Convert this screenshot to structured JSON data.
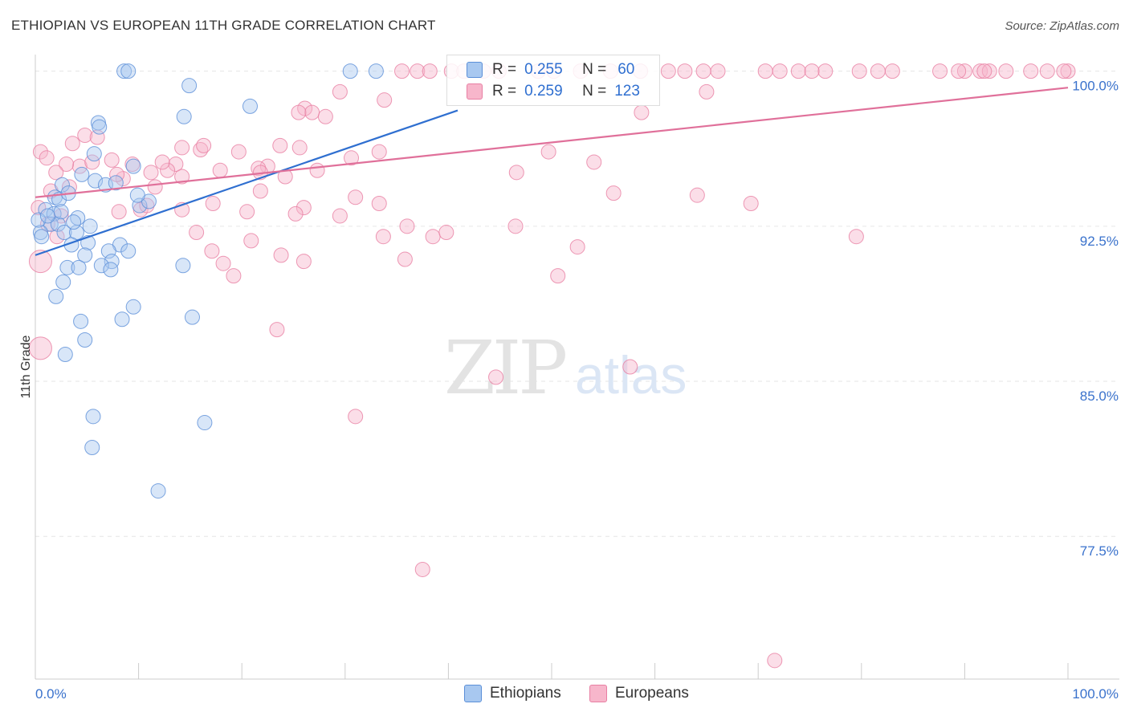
{
  "title": "ETHIOPIAN VS EUROPEAN 11TH GRADE CORRELATION CHART",
  "source": "Source: ZipAtlas.com",
  "watermark": {
    "zip": "ZIP",
    "atlas": "atlas"
  },
  "legend": {
    "r_label": "R =",
    "n_label": "N =",
    "ethiopians": {
      "r": "0.255",
      "n": "60"
    },
    "europeans": {
      "r": "0.259",
      "n": "123"
    }
  },
  "bottom_legend": {
    "ethiopians": "Ethiopians",
    "europeans": "Europeans"
  },
  "colors": {
    "ethiopians_fill": "#a8c8f0",
    "ethiopians_stroke": "#5b8fd8",
    "ethiopians_line": "#2f6fd0",
    "europeans_fill": "#f7b6cb",
    "europeans_stroke": "#e87fa3",
    "europeans_line": "#e0709a",
    "axis_text": "#3a72cc"
  },
  "chart_data": {
    "type": "scatter",
    "title": "ETHIOPIAN VS EUROPEAN 11TH GRADE CORRELATION CHART",
    "xlabel": "",
    "ylabel": "11th Grade",
    "xlim": [
      0,
      100
    ],
    "ylim": [
      70.6,
      100.8
    ],
    "x_tick_labels": [
      "0.0%",
      "100.0%"
    ],
    "y_ticks": [
      {
        "value": 100.0,
        "label": "100.0%"
      },
      {
        "value": 92.5,
        "label": "92.5%"
      },
      {
        "value": 85.0,
        "label": "85.0%"
      },
      {
        "value": 77.5,
        "label": "77.5%"
      }
    ],
    "series": [
      {
        "name": "Ethiopians",
        "r": 0.255,
        "n": 60,
        "trend": {
          "x": [
            0,
            40.9
          ],
          "y": [
            91.1,
            98.1
          ]
        },
        "points": [
          [
            8.6,
            100
          ],
          [
            9.0,
            100
          ],
          [
            30.5,
            100
          ],
          [
            33.0,
            100
          ],
          [
            14.9,
            99.3
          ],
          [
            20.8,
            98.3
          ],
          [
            14.4,
            97.8
          ],
          [
            6.1,
            97.5
          ],
          [
            6.2,
            97.3
          ],
          [
            5.7,
            96.0
          ],
          [
            9.5,
            95.4
          ],
          [
            4.5,
            95.0
          ],
          [
            5.8,
            94.7
          ],
          [
            6.8,
            94.5
          ],
          [
            7.8,
            94.6
          ],
          [
            2.6,
            94.5
          ],
          [
            1.9,
            93.9
          ],
          [
            2.3,
            93.8
          ],
          [
            3.2,
            94.1
          ],
          [
            1.0,
            93.3
          ],
          [
            1.8,
            93.1
          ],
          [
            1.5,
            92.6
          ],
          [
            2.2,
            92.6
          ],
          [
            4.1,
            92.9
          ],
          [
            5.3,
            92.5
          ],
          [
            0.5,
            92.2
          ],
          [
            0.6,
            92.0
          ],
          [
            2.8,
            92.2
          ],
          [
            4.0,
            92.2
          ],
          [
            8.2,
            91.6
          ],
          [
            3.5,
            91.6
          ],
          [
            5.1,
            91.7
          ],
          [
            9.0,
            91.3
          ],
          [
            7.1,
            91.3
          ],
          [
            4.8,
            91.1
          ],
          [
            7.4,
            90.8
          ],
          [
            14.3,
            90.6
          ],
          [
            3.1,
            90.5
          ],
          [
            4.2,
            90.5
          ],
          [
            6.4,
            90.6
          ],
          [
            7.3,
            90.4
          ],
          [
            2.7,
            89.8
          ],
          [
            2.0,
            89.1
          ],
          [
            9.5,
            88.6
          ],
          [
            8.4,
            88.0
          ],
          [
            15.2,
            88.1
          ],
          [
            4.4,
            87.9
          ],
          [
            4.8,
            87.0
          ],
          [
            2.9,
            86.3
          ],
          [
            5.6,
            83.3
          ],
          [
            16.4,
            83.0
          ],
          [
            5.5,
            81.8
          ],
          [
            11.9,
            79.7
          ],
          [
            0.3,
            92.8
          ],
          [
            1.2,
            93.0
          ],
          [
            2.5,
            93.2
          ],
          [
            3.7,
            92.7
          ],
          [
            10.1,
            93.5
          ],
          [
            11.0,
            93.7
          ],
          [
            9.9,
            94.0
          ]
        ]
      },
      {
        "name": "Europeans",
        "r": 0.259,
        "n": 123,
        "trend": {
          "x": [
            0,
            100
          ],
          "y": [
            93.9,
            99.2
          ]
        },
        "points": [
          [
            35.5,
            100
          ],
          [
            37.0,
            100
          ],
          [
            43.4,
            100
          ],
          [
            44.9,
            100
          ],
          [
            48.7,
            100
          ],
          [
            55.7,
            100
          ],
          [
            61.3,
            100
          ],
          [
            64.7,
            100
          ],
          [
            73.9,
            100
          ],
          [
            76.5,
            100
          ],
          [
            83.0,
            100
          ],
          [
            87.6,
            100
          ],
          [
            90.0,
            100
          ],
          [
            91.5,
            100
          ],
          [
            92.4,
            100
          ],
          [
            96.4,
            100
          ],
          [
            98.0,
            100
          ],
          [
            100,
            100
          ],
          [
            38.2,
            100
          ],
          [
            40.3,
            100
          ],
          [
            41.5,
            100
          ],
          [
            50.2,
            100
          ],
          [
            52.8,
            100
          ],
          [
            58.6,
            100
          ],
          [
            62.9,
            100
          ],
          [
            66.1,
            100
          ],
          [
            70.7,
            100
          ],
          [
            72.1,
            100
          ],
          [
            75.2,
            100
          ],
          [
            79.8,
            100
          ],
          [
            81.6,
            100
          ],
          [
            89.4,
            100
          ],
          [
            91.9,
            100
          ],
          [
            94.0,
            100
          ],
          [
            99.6,
            100
          ],
          [
            29.5,
            99.0
          ],
          [
            65.0,
            99.0
          ],
          [
            33.8,
            98.6
          ],
          [
            26.1,
            98.2
          ],
          [
            26.8,
            98.0
          ],
          [
            25.5,
            98.0
          ],
          [
            28.1,
            97.8
          ],
          [
            58.7,
            98.0
          ],
          [
            4.8,
            96.9
          ],
          [
            16.0,
            96.2
          ],
          [
            3.6,
            96.5
          ],
          [
            19.7,
            96.1
          ],
          [
            14.2,
            96.3
          ],
          [
            16.3,
            96.4
          ],
          [
            6.0,
            96.8
          ],
          [
            0.5,
            96.1
          ],
          [
            25.6,
            96.3
          ],
          [
            23.7,
            96.4
          ],
          [
            9.4,
            95.5
          ],
          [
            13.6,
            95.5
          ],
          [
            22.5,
            95.4
          ],
          [
            33.3,
            96.1
          ],
          [
            4.3,
            95.4
          ],
          [
            3.0,
            95.5
          ],
          [
            7.4,
            95.7
          ],
          [
            17.9,
            95.2
          ],
          [
            21.6,
            95.3
          ],
          [
            49.7,
            96.1
          ],
          [
            54.1,
            95.6
          ],
          [
            2.0,
            95.1
          ],
          [
            11.2,
            95.1
          ],
          [
            12.8,
            95.2
          ],
          [
            14.2,
            94.9
          ],
          [
            8.5,
            94.8
          ],
          [
            24.2,
            94.9
          ],
          [
            21.8,
            95.1
          ],
          [
            27.3,
            95.2
          ],
          [
            46.6,
            95.1
          ],
          [
            1.5,
            94.2
          ],
          [
            3.3,
            94.4
          ],
          [
            21.8,
            94.2
          ],
          [
            56.0,
            94.1
          ],
          [
            64.1,
            94.0
          ],
          [
            31.0,
            93.9
          ],
          [
            33.3,
            93.6
          ],
          [
            17.2,
            93.6
          ],
          [
            26.0,
            93.4
          ],
          [
            20.5,
            93.2
          ],
          [
            8.1,
            93.2
          ],
          [
            10.2,
            93.3
          ],
          [
            14.2,
            93.3
          ],
          [
            25.2,
            93.1
          ],
          [
            29.5,
            93.0
          ],
          [
            36.0,
            92.5
          ],
          [
            38.5,
            92.0
          ],
          [
            46.5,
            92.5
          ],
          [
            33.7,
            92.0
          ],
          [
            39.8,
            92.2
          ],
          [
            15.6,
            92.2
          ],
          [
            20.9,
            91.8
          ],
          [
            17.1,
            91.3
          ],
          [
            23.8,
            91.1
          ],
          [
            26.0,
            90.8
          ],
          [
            52.5,
            91.5
          ],
          [
            18.2,
            90.7
          ],
          [
            19.2,
            90.1
          ],
          [
            50.6,
            90.1
          ],
          [
            35.8,
            90.9
          ],
          [
            79.5,
            92.0
          ],
          [
            0.5,
            90.8
          ],
          [
            2.1,
            92.0
          ],
          [
            23.4,
            87.5
          ],
          [
            57.6,
            85.7
          ],
          [
            44.6,
            85.2
          ],
          [
            31.0,
            83.3
          ],
          [
            37.5,
            75.9
          ],
          [
            71.6,
            71.5
          ],
          [
            2.5,
            93.0
          ],
          [
            0.5,
            86.6
          ],
          [
            69.3,
            93.6
          ],
          [
            10.8,
            93.5
          ],
          [
            5.5,
            95.6
          ],
          [
            7.9,
            95.0
          ],
          [
            12.3,
            95.6
          ],
          [
            1.1,
            95.8
          ],
          [
            30.6,
            95.8
          ],
          [
            11.6,
            94.4
          ],
          [
            1.2,
            92.6
          ],
          [
            0.3,
            93.4
          ]
        ]
      }
    ]
  }
}
